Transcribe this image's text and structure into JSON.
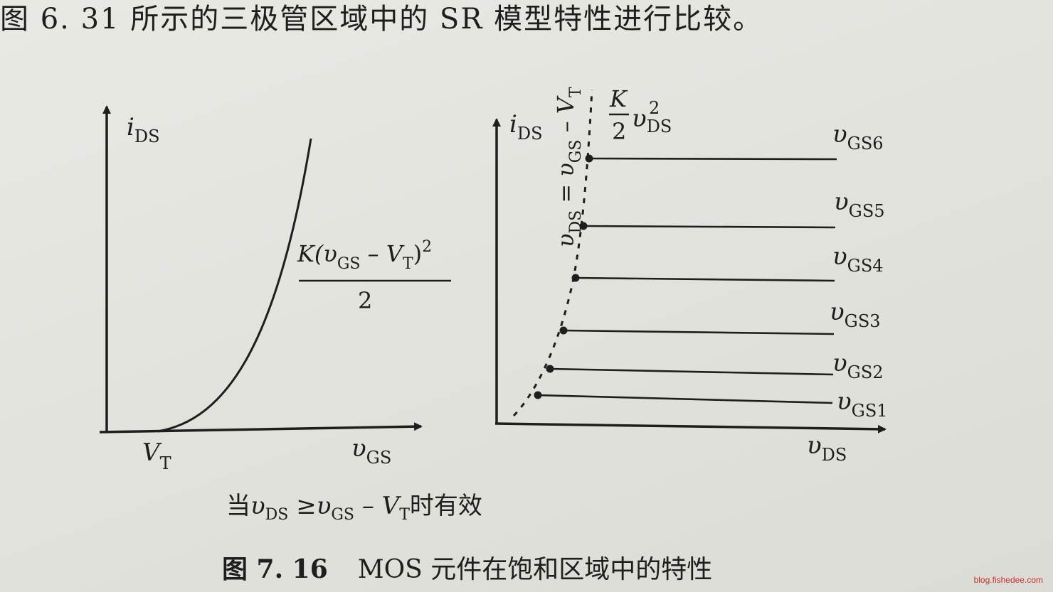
{
  "top_text": "图 6. 31 所示的三极管区域中的 SR 模型特性进行比较。",
  "left_plot": {
    "y_label": {
      "main": "i",
      "sub": "DS"
    },
    "x_label": {
      "main": "υ",
      "sub": "GS"
    },
    "origin_label": {
      "main": "V",
      "sub": "T"
    },
    "formula": {
      "num_prefix": "K(υ",
      "num_sub1": "GS",
      "num_mid": " – V",
      "num_sub2": "T",
      "num_suffix": ")",
      "num_exp": "2",
      "den": "2"
    }
  },
  "right_plot": {
    "y_label": {
      "main": "i",
      "sub": "DS"
    },
    "x_label": {
      "main": "υ",
      "sub": "DS"
    },
    "boundary_label": {
      "a": "υ",
      "a_sub": "DS",
      "eq": " = υ",
      "b_sub": "GS",
      "c": " – V",
      "c_sub": "T"
    },
    "boundary_formula": {
      "num": "K",
      "den": "2",
      "var": "υ",
      "var_sub": "DS",
      "var_exp": "2"
    },
    "curves": [
      {
        "label": "υ",
        "sub": "GS6"
      },
      {
        "label": "υ",
        "sub": "GS5"
      },
      {
        "label": "υ",
        "sub": "GS4"
      },
      {
        "label": "υ",
        "sub": "GS3"
      },
      {
        "label": "υ",
        "sub": "GS2"
      },
      {
        "label": "υ",
        "sub": "GS1"
      }
    ]
  },
  "condition": {
    "pre": "当",
    "v1": "υ",
    "v1_sub": "DS",
    "op": " ≥",
    "v2": "υ",
    "v2_sub": "GS",
    "minus": " – V",
    "v3_sub": "T",
    "post": "时有效"
  },
  "figure_caption": {
    "number": "图 7. 16",
    "text": "MOS 元件在饱和区域中的特性"
  },
  "watermark": "blog.fishedee.com"
}
